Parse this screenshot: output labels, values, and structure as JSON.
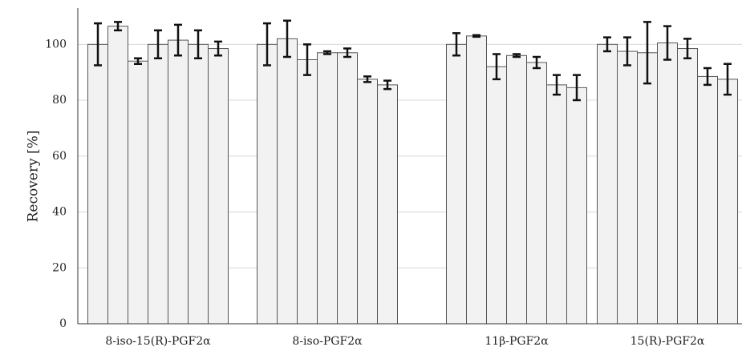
{
  "chart_data": {
    "type": "bar",
    "categories": [
      "8-iso-15(R)-PGF2α",
      "8-iso-PGF2α",
      "11β-PGF2α",
      "15(R)-PGF2α"
    ],
    "y_label": "Recovery [%]",
    "color": "#f2f2f2",
    "ylim": [
      0,
      113
    ],
    "yticks": [
      0,
      20,
      40,
      60,
      80,
      100
    ],
    "grid": true,
    "series": [
      {
        "values": [
          100,
          100,
          100,
          100
        ],
        "errors": [
          7.5,
          7.5,
          4,
          2.5
        ]
      },
      {
        "values": [
          106.5,
          102,
          103,
          97.5
        ],
        "errors": [
          1.5,
          6.5,
          0.3,
          5
        ]
      },
      {
        "values": [
          94,
          94.5,
          92,
          97
        ],
        "errors": [
          1,
          5.5,
          4.5,
          11
        ]
      },
      {
        "values": [
          100,
          97,
          96,
          100.5
        ],
        "errors": [
          5,
          0.5,
          0.5,
          6
        ]
      },
      {
        "values": [
          101.5,
          97,
          93.5,
          98.5
        ],
        "errors": [
          5.5,
          1.5,
          2,
          3.5
        ]
      },
      {
        "values": [
          100,
          87.5,
          85.5,
          88.5
        ],
        "errors": [
          5,
          1,
          3.5,
          3
        ]
      },
      {
        "values": [
          98.5,
          85.5,
          84.5,
          87.5
        ],
        "errors": [
          2.5,
          1.5,
          4.5,
          5.5
        ]
      }
    ]
  }
}
